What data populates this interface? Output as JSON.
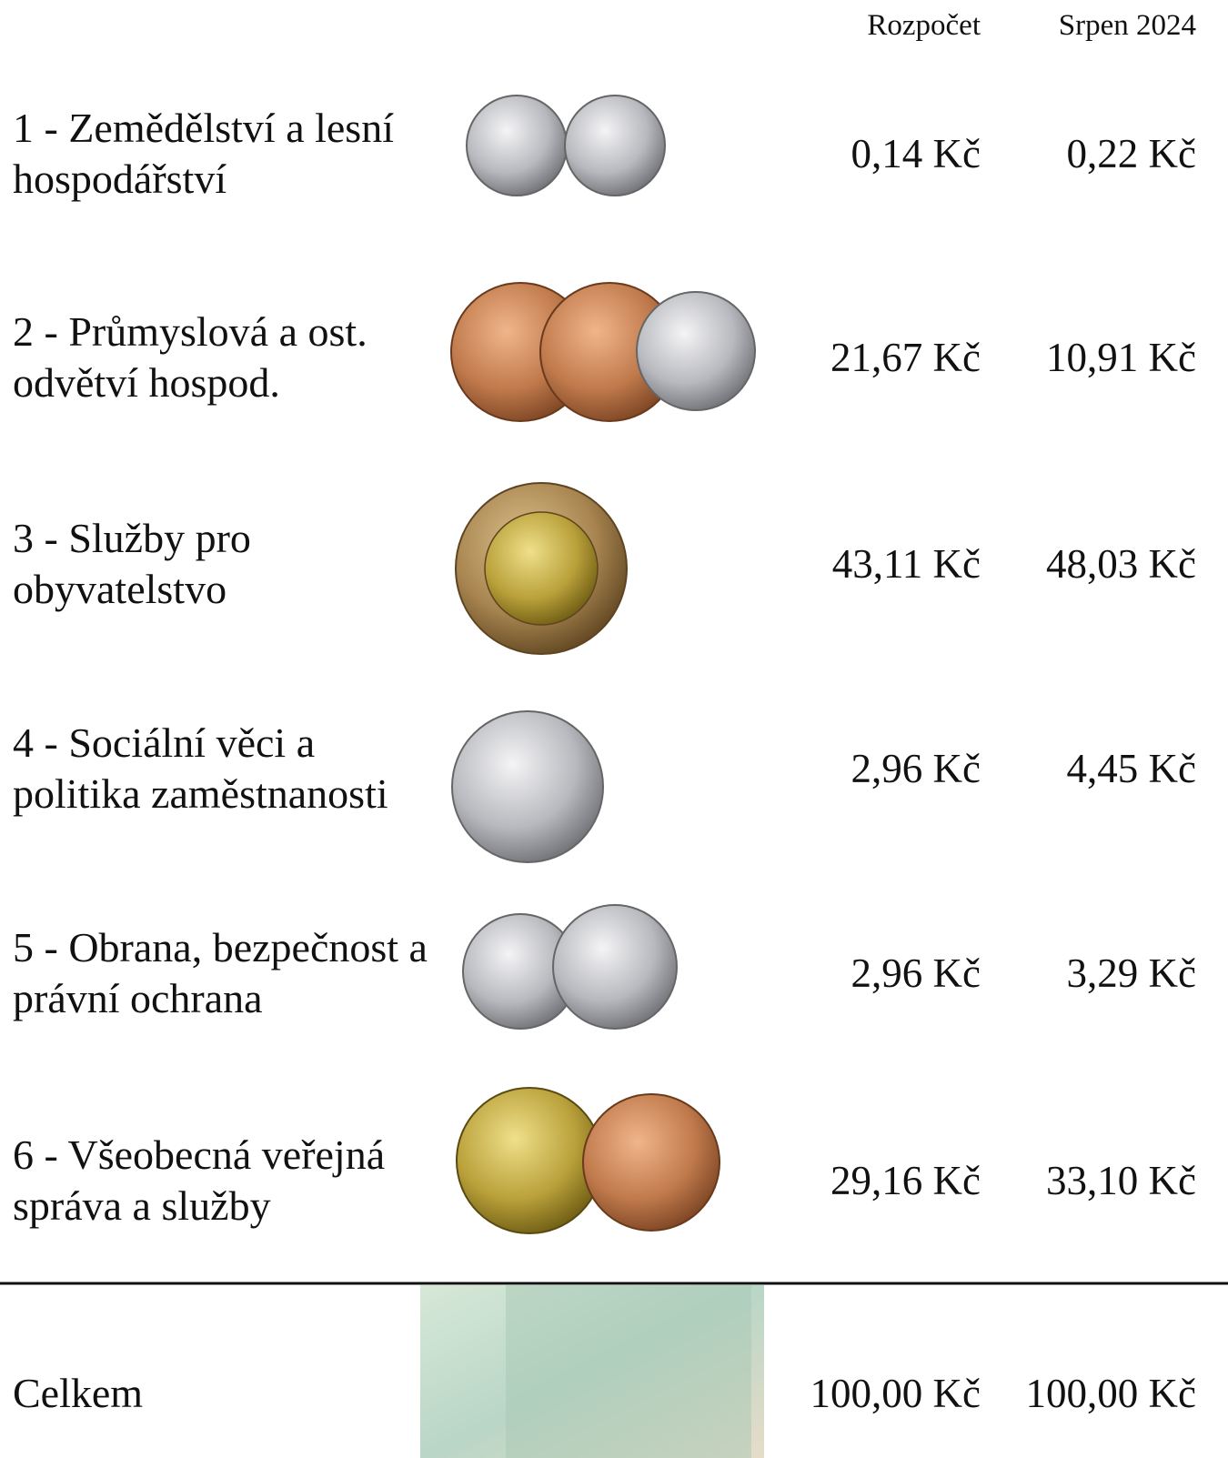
{
  "header": {
    "columns": [
      "Rozpočet",
      "Srpen 2024"
    ]
  },
  "table": {
    "rows": [
      {
        "label": "1 - Zemědělství a lesní hospodářství",
        "budget": "0,14 Kč",
        "august": "0,22 Kč"
      },
      {
        "label": "2 - Průmyslová a ost. odvětví hospod.",
        "budget": "21,67 Kč",
        "august": "10,91 Kč"
      },
      {
        "label": "3 - Služby pro obyvatelstvo",
        "budget": "43,11 Kč",
        "august": "48,03 Kč"
      },
      {
        "label": "4 - Sociální věci a politika zaměstnanosti",
        "budget": "2,96 Kč",
        "august": "4,45 Kč"
      },
      {
        "label": "5 - Obrana, bezpečnost a právní ochrana",
        "budget": "2,96 Kč",
        "august": "3,29 Kč"
      },
      {
        "label": "6 - Všeobecná veřejná správa a služby",
        "budget": "29,16 Kč",
        "august": "33,10 Kč"
      }
    ],
    "total": {
      "label": "Celkem",
      "budget": "100,00 Kč",
      "august": "100,00 Kč"
    }
  }
}
